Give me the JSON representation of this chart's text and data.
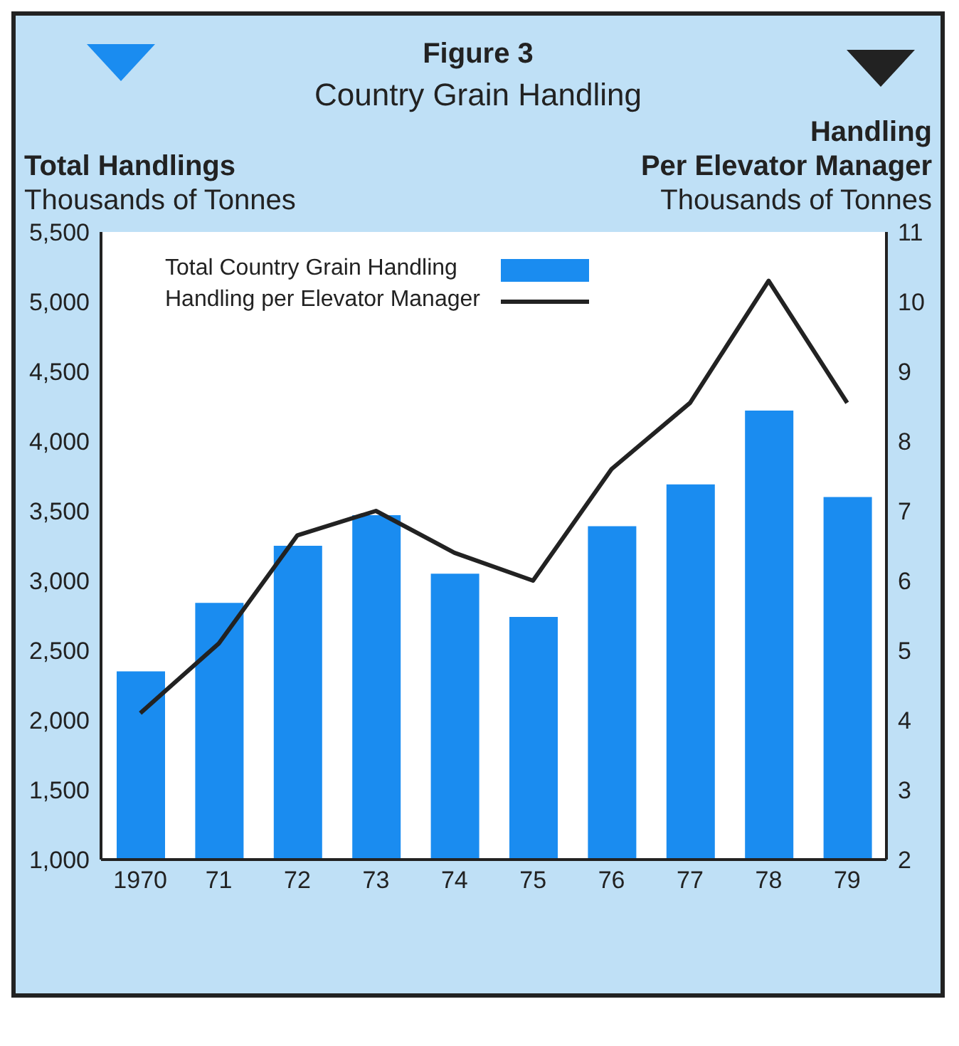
{
  "chart_data": {
    "type": "bar",
    "title": "Figure 3",
    "subtitle": "Country Grain Handling",
    "ylabel": "Total Handlings\nThousands of Tonnes",
    "y2label": "Handling\nPer Elevator Manager\nThousands of Tonnes",
    "categories": [
      "1970",
      "71",
      "72",
      "73",
      "74",
      "75",
      "76",
      "77",
      "78",
      "79"
    ],
    "series": [
      {
        "name": "Total Country Grain Handling",
        "color": "#1a8cf0",
        "values": [
          2350,
          2840,
          3250,
          3470,
          3050,
          2740,
          3390,
          3690,
          4220,
          3600
        ]
      },
      {
        "name": "Handling per Elevator Manager",
        "type": "line",
        "axis": "y2",
        "color": "#222222",
        "values": [
          4.1,
          5.1,
          6.65,
          7.0,
          6.4,
          6.0,
          7.6,
          8.55,
          10.3,
          8.55
        ]
      }
    ],
    "ylim": [
      1000,
      5500
    ],
    "yticks": [
      {
        "value": 1000,
        "label": "1,000"
      },
      {
        "value": 1500,
        "label": "1,500"
      },
      {
        "value": 2000,
        "label": "2,000"
      },
      {
        "value": 2500,
        "label": "2,500"
      },
      {
        "value": 3000,
        "label": "3,000"
      },
      {
        "value": 3500,
        "label": "3,500"
      },
      {
        "value": 4000,
        "label": "4,000"
      },
      {
        "value": 4500,
        "label": "4,500"
      },
      {
        "value": 5000,
        "label": "5,000"
      },
      {
        "value": 5500,
        "label": "5,500"
      }
    ],
    "y2lim": [
      2,
      11
    ],
    "y2ticks": [
      2,
      3,
      4,
      5,
      6,
      7,
      8,
      9,
      10,
      11
    ],
    "grid": false,
    "legend": "top left",
    "marker": "none",
    "line_style": "solid"
  }
}
